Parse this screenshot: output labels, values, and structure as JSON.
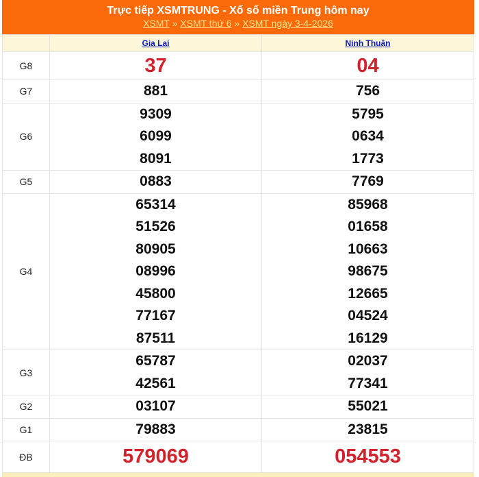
{
  "header": {
    "title": "Trực tiếp XSMTRUNG - Xổ số miền Trung hôm nay",
    "breadcrumb": [
      "XSMT",
      "XSMT thứ 6",
      "XSMT ngày 3-4-2026"
    ],
    "separator": "»"
  },
  "columns": [
    "Gia Lai",
    "Ninh Thuận"
  ],
  "colors": {
    "header_bg": "#fa6a0a",
    "highlight": "#d3222c",
    "table_header_bg": "#fef6d8"
  },
  "prizes": [
    {
      "label": "G8",
      "big": true,
      "values": [
        [
          "37"
        ],
        [
          "04"
        ]
      ]
    },
    {
      "label": "G7",
      "values": [
        [
          "881"
        ],
        [
          "756"
        ]
      ]
    },
    {
      "label": "G6",
      "values": [
        [
          "9309",
          "6099",
          "8091"
        ],
        [
          "5795",
          "0634",
          "1773"
        ]
      ]
    },
    {
      "label": "G5",
      "values": [
        [
          "0883"
        ],
        [
          "7769"
        ]
      ]
    },
    {
      "label": "G4",
      "values": [
        [
          "65314",
          "51526",
          "80905",
          "08996",
          "45800",
          "77167",
          "87511"
        ],
        [
          "85968",
          "01658",
          "10663",
          "98675",
          "12665",
          "04524",
          "16129"
        ]
      ]
    },
    {
      "label": "G3",
      "values": [
        [
          "65787",
          "42561"
        ],
        [
          "02037",
          "77341"
        ]
      ]
    },
    {
      "label": "G2",
      "values": [
        [
          "03107"
        ],
        [
          "55021"
        ]
      ]
    },
    {
      "label": "G1",
      "values": [
        [
          "79883"
        ],
        [
          "23815"
        ]
      ]
    },
    {
      "label": "ĐB",
      "big": true,
      "db": true,
      "values": [
        [
          "579069"
        ],
        [
          "054553"
        ]
      ]
    }
  ]
}
